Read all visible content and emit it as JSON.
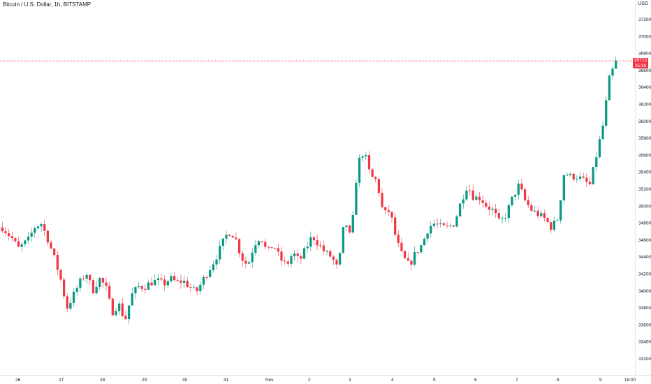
{
  "header": {
    "title": "Bitcoin / U.S. Dollar, 1h, BITSTAMP",
    "currency": "USD"
  },
  "price_badge": {
    "price": "36713",
    "countdown": "25:38"
  },
  "colors": {
    "up": "#089981",
    "down": "#f23645",
    "price_line": "#f23645",
    "text": "#131722",
    "axis_line": "#e0e3eb"
  },
  "chart_data": {
    "type": "candlestick",
    "title": "Bitcoin / U.S. Dollar, 1h, BITSTAMP",
    "ylabel": "USD",
    "ylim": [
      33100,
      37250
    ],
    "y_ticks": [
      "37200",
      "37000",
      "36800",
      "36600",
      "36400",
      "36200",
      "36000",
      "35800",
      "35600",
      "35400",
      "35200",
      "35000",
      "34800",
      "34600",
      "34400",
      "34200",
      "34000",
      "33800",
      "33600",
      "33400",
      "33200"
    ],
    "x_ticks": [
      "26",
      "27",
      "28",
      "29",
      "30",
      "31",
      "Nov",
      "2",
      "3",
      "4",
      "5",
      "6",
      "7",
      "8",
      "9",
      "18:00"
    ],
    "current_price": 36713,
    "grid": false,
    "close_path": [
      [
        0,
        34750
      ],
      [
        3,
        34620
      ],
      [
        5,
        34500
      ],
      [
        8,
        34600
      ],
      [
        10,
        34750
      ],
      [
        12,
        34800
      ],
      [
        14,
        34620
      ],
      [
        16,
        34400
      ],
      [
        18,
        34150
      ],
      [
        20,
        33800
      ],
      [
        22,
        33950
      ],
      [
        24,
        34100
      ],
      [
        26,
        34220
      ],
      [
        28,
        34000
      ],
      [
        30,
        34150
      ],
      [
        32,
        34050
      ],
      [
        34,
        33750
      ],
      [
        36,
        33850
      ],
      [
        38,
        33650
      ],
      [
        40,
        33950
      ],
      [
        42,
        34050
      ],
      [
        44,
        34050
      ],
      [
        46,
        34100
      ],
      [
        48,
        34120
      ],
      [
        50,
        34080
      ],
      [
        52,
        34150
      ],
      [
        54,
        34100
      ],
      [
        56,
        34120
      ],
      [
        58,
        34050
      ],
      [
        60,
        33980
      ],
      [
        62,
        34120
      ],
      [
        64,
        34250
      ],
      [
        66,
        34380
      ],
      [
        68,
        34550
      ],
      [
        70,
        34700
      ],
      [
        72,
        34650
      ],
      [
        74,
        34400
      ],
      [
        76,
        34300
      ],
      [
        78,
        34550
      ],
      [
        80,
        34650
      ],
      [
        82,
        34450
      ],
      [
        84,
        34550
      ],
      [
        86,
        34380
      ],
      [
        88,
        34300
      ],
      [
        90,
        34450
      ],
      [
        92,
        34350
      ],
      [
        94,
        34500
      ],
      [
        96,
        34650
      ],
      [
        98,
        34550
      ],
      [
        100,
        34450
      ],
      [
        102,
        34400
      ],
      [
        104,
        34250
      ],
      [
        106,
        34850
      ],
      [
        108,
        34600
      ],
      [
        110,
        35500
      ],
      [
        112,
        35650
      ],
      [
        114,
        35350
      ],
      [
        116,
        35300
      ],
      [
        118,
        34900
      ],
      [
        120,
        34950
      ],
      [
        122,
        34600
      ],
      [
        124,
        34400
      ],
      [
        126,
        34300
      ],
      [
        128,
        34450
      ],
      [
        130,
        34550
      ],
      [
        132,
        34750
      ],
      [
        134,
        34800
      ],
      [
        136,
        34750
      ],
      [
        138,
        34750
      ],
      [
        140,
        34800
      ],
      [
        142,
        35050
      ],
      [
        144,
        35250
      ],
      [
        146,
        35100
      ],
      [
        148,
        35100
      ],
      [
        150,
        35000
      ],
      [
        152,
        34950
      ],
      [
        154,
        34800
      ],
      [
        156,
        34900
      ],
      [
        158,
        35100
      ],
      [
        160,
        35250
      ],
      [
        162,
        35050
      ],
      [
        164,
        34950
      ],
      [
        166,
        34900
      ],
      [
        168,
        34850
      ],
      [
        170,
        34750
      ],
      [
        172,
        34850
      ],
      [
        174,
        35400
      ],
      [
        176,
        35350
      ],
      [
        178,
        35350
      ],
      [
        180,
        35300
      ],
      [
        182,
        35250
      ],
      [
        184,
        35600
      ],
      [
        186,
        35950
      ],
      [
        188,
        36500
      ],
      [
        190,
        36700
      ]
    ]
  }
}
